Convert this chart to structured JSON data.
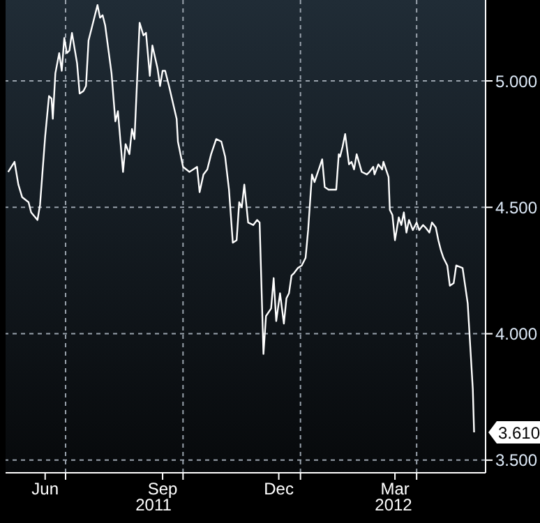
{
  "chart_data": {
    "type": "line",
    "x": [
      "2011-05-17",
      "2011-05-22",
      "2011-05-25",
      "2011-05-28",
      "2011-06-02",
      "2011-06-04",
      "2011-06-09",
      "2011-06-11",
      "2011-06-15",
      "2011-06-18",
      "2011-06-20",
      "2011-06-21",
      "2011-06-23",
      "2011-06-26",
      "2011-06-28",
      "2011-06-30",
      "2011-07-02",
      "2011-07-04",
      "2011-07-06",
      "2011-07-10",
      "2011-07-12",
      "2011-07-15",
      "2011-07-17",
      "2011-07-19",
      "2011-07-23",
      "2011-07-26",
      "2011-07-28",
      "2011-07-30",
      "2011-08-01",
      "2011-08-06",
      "2011-08-09",
      "2011-08-11",
      "2011-08-15",
      "2011-08-17",
      "2011-08-20",
      "2011-08-22",
      "2011-08-24",
      "2011-08-28",
      "2011-08-31",
      "2011-09-02",
      "2011-09-05",
      "2011-09-07",
      "2011-09-11",
      "2011-09-13",
      "2011-09-15",
      "2011-09-17",
      "2011-09-20",
      "2011-09-26",
      "2011-09-27",
      "2011-10-01",
      "2011-10-06",
      "2011-10-09",
      "2011-10-12",
      "2011-10-14",
      "2011-10-17",
      "2011-10-20",
      "2011-10-23",
      "2011-10-27",
      "2011-10-31",
      "2011-11-03",
      "2011-11-06",
      "2011-11-09",
      "2011-11-12",
      "2011-11-14",
      "2011-11-16",
      "2011-11-18",
      "2011-11-21",
      "2011-11-25",
      "2011-11-28",
      "2011-11-30",
      "2011-12-03",
      "2011-12-05",
      "2011-12-09",
      "2011-12-11",
      "2011-12-13",
      "2011-12-16",
      "2011-12-19",
      "2011-12-21",
      "2011-12-23",
      "2011-12-25",
      "2011-12-27",
      "2011-12-30",
      "2012-01-02",
      "2012-01-05",
      "2012-01-07",
      "2012-01-10",
      "2012-01-12",
      "2012-01-16",
      "2012-01-18",
      "2012-01-20",
      "2012-01-23",
      "2012-01-29",
      "2012-01-31",
      "2012-02-01",
      "2012-02-03",
      "2012-02-05",
      "2012-02-08",
      "2012-02-10",
      "2012-02-12",
      "2012-02-14",
      "2012-02-18",
      "2012-02-22",
      "2012-02-24",
      "2012-02-27",
      "2012-02-28",
      "2012-03-02",
      "2012-03-05",
      "2012-03-06",
      "2012-03-10",
      "2012-03-11",
      "2012-03-13",
      "2012-03-15",
      "2012-03-18",
      "2012-03-20",
      "2012-03-22",
      "2012-03-24",
      "2012-03-26",
      "2012-03-29",
      "2012-04-01",
      "2012-04-03",
      "2012-04-06",
      "2012-04-08",
      "2012-04-11",
      "2012-04-13",
      "2012-04-16",
      "2012-04-18",
      "2012-04-20",
      "2012-04-22",
      "2012-04-25",
      "2012-04-27",
      "2012-04-30",
      "2012-05-02",
      "2012-05-07",
      "2012-05-09",
      "2012-05-11",
      "2012-05-13",
      "2012-05-15",
      "2012-05-16"
    ],
    "series": [
      {
        "color": "#ffffff",
        "values": [
          4.64,
          4.68,
          4.59,
          4.54,
          4.52,
          4.48,
          4.45,
          4.51,
          4.78,
          4.94,
          4.93,
          4.85,
          5.03,
          5.11,
          5.04,
          5.17,
          5.11,
          5.12,
          5.19,
          5.07,
          4.95,
          4.96,
          4.98,
          5.16,
          5.24,
          5.3,
          5.25,
          5.26,
          5.22,
          5.03,
          4.84,
          4.88,
          4.64,
          4.75,
          4.71,
          4.81,
          4.77,
          5.23,
          5.18,
          5.19,
          5.02,
          5.14,
          5.05,
          4.98,
          5.04,
          5.04,
          4.98,
          4.85,
          4.76,
          4.66,
          4.64,
          4.65,
          4.66,
          4.56,
          4.63,
          4.65,
          4.71,
          4.77,
          4.76,
          4.7,
          4.57,
          4.36,
          4.37,
          4.52,
          4.5,
          4.59,
          4.44,
          4.43,
          4.45,
          4.44,
          3.92,
          4.07,
          4.1,
          4.22,
          4.05,
          4.16,
          4.04,
          4.14,
          4.16,
          4.23,
          4.24,
          4.26,
          4.27,
          4.3,
          4.41,
          4.63,
          4.6,
          4.66,
          4.69,
          4.58,
          4.57,
          4.57,
          4.71,
          4.7,
          4.74,
          4.79,
          4.67,
          4.68,
          4.65,
          4.71,
          4.64,
          4.63,
          4.64,
          4.66,
          4.63,
          4.67,
          4.65,
          4.68,
          4.62,
          4.49,
          4.47,
          4.37,
          4.46,
          4.43,
          4.48,
          4.4,
          4.45,
          4.41,
          4.44,
          4.41,
          4.43,
          4.42,
          4.4,
          4.44,
          4.42,
          4.37,
          4.33,
          4.3,
          4.27,
          4.19,
          4.2,
          4.27,
          4.26,
          4.19,
          4.12,
          3.95,
          3.78,
          3.61
        ]
      }
    ],
    "xlim": [
      "2011-05-15",
      "2012-05-25"
    ],
    "xticks": [
      {
        "value": "2011-06-15",
        "label": "Jun"
      },
      {
        "value": "2011-07-01",
        "label": null
      },
      {
        "value": "2011-09-15",
        "label": "Sep"
      },
      {
        "value": "2011-10-01",
        "label": null
      },
      {
        "value": "2011-12-15",
        "label": "Dec"
      },
      {
        "value": "2012-01-01",
        "label": null
      },
      {
        "value": "2012-03-15",
        "label": "Mar"
      },
      {
        "value": "2012-04-01",
        "label": null
      }
    ],
    "ylim": [
      3.45,
      5.32
    ],
    "yticks": [
      {
        "value": 3.5,
        "label": "3.500"
      },
      {
        "value": 4,
        "label": "4.000"
      },
      {
        "value": 4.5,
        "label": "4.500"
      },
      {
        "value": 5,
        "label": "5.000"
      }
    ],
    "grid": true,
    "line_style": "solid",
    "annotations": [
      "2011",
      "2012",
      {
        "text": "3.610",
        "x": "2012-05-16",
        "y": 3.61
      }
    ]
  }
}
